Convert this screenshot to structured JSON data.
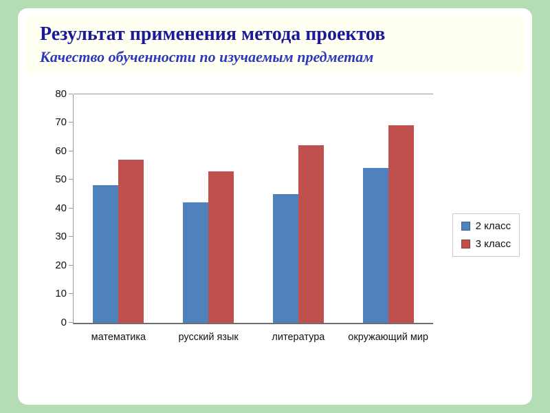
{
  "slide": {
    "title": "Результат применения метода проектов",
    "subtitle": "Качество обученности по изучаемым предметам"
  },
  "colors": {
    "background": "#b4ddb4",
    "slide": "#ffffff",
    "header": "#fffff2",
    "title": "#1a1a99",
    "subtitle": "#2d3ab8",
    "axis": "#9a9a9a",
    "axis_strong": "#6e6e6e",
    "grid": "#9a9a9a",
    "text": "#111111",
    "legend_border": "#c9c9c9"
  },
  "chart_data": {
    "type": "bar",
    "categories": [
      "математика",
      "русский язык",
      "литература",
      "окружающий мир"
    ],
    "series": [
      {
        "name": "2 класс",
        "color": "#4f81bd",
        "values": [
          48,
          42,
          45,
          54
        ]
      },
      {
        "name": "3 класс",
        "color": "#c0504d",
        "values": [
          57,
          53,
          62,
          69
        ]
      }
    ],
    "title": "",
    "xlabel": "",
    "ylabel": "",
    "ylim": [
      0,
      80
    ],
    "ytick_step": 10,
    "grid": false,
    "legend_position": "right"
  }
}
